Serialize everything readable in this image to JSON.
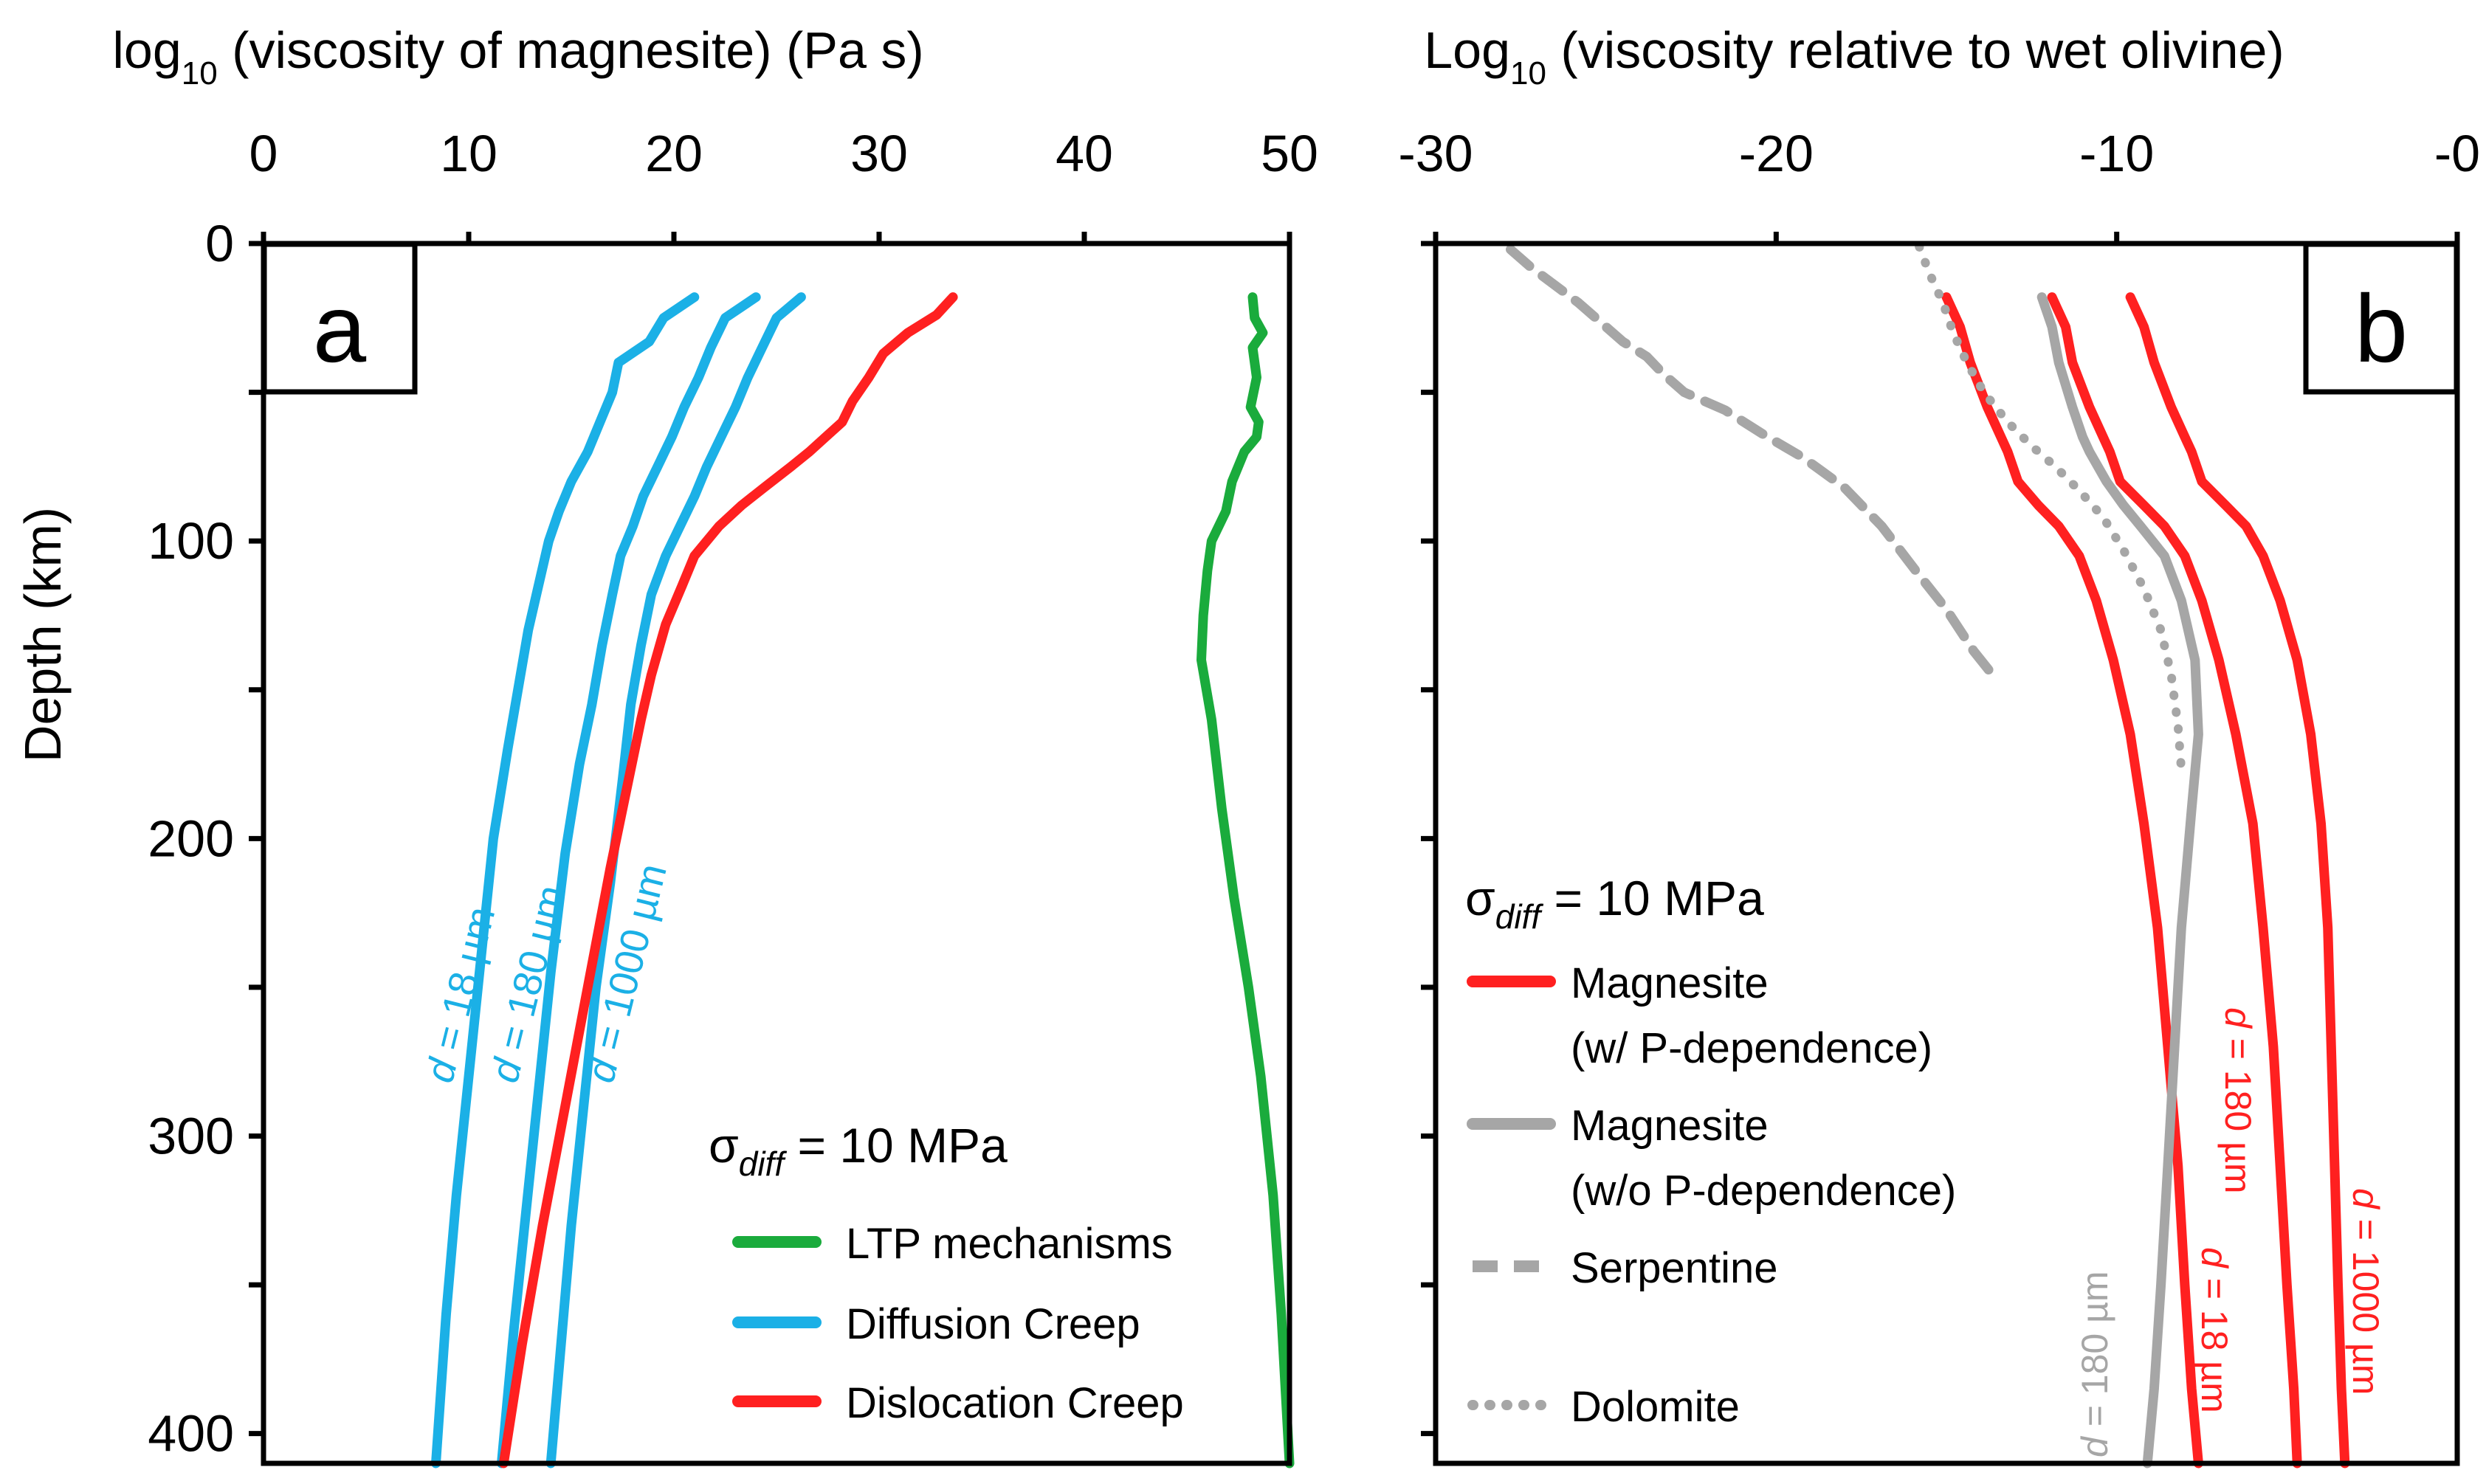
{
  "chart_data": [
    {
      "panel": "a",
      "type": "line",
      "xlabel": {
        "pre": "log",
        "sub": "10",
        "post": " (viscosity of magnesite) (Pa s)"
      },
      "ylabel": "Depth (km)",
      "xlim": [
        0,
        50
      ],
      "ylim": [
        0,
        410
      ],
      "x_ticks": [
        0,
        10,
        20,
        30,
        40,
        50
      ],
      "x_tick_labels": [
        "0",
        "10",
        "20",
        "30",
        "40",
        "50"
      ],
      "y_ticks": [
        0,
        100,
        200,
        300,
        400
      ],
      "y_tick_labels": [
        "0",
        "100",
        "200",
        "300",
        "400"
      ],
      "legend": {
        "title_symbol": "σ",
        "title_sub": "diff",
        "title_rest": " = 10 MPa",
        "entries": [
          {
            "label": "LTP mechanisms",
            "color": "#1aab3c",
            "style": "solid"
          },
          {
            "label": "Diffusion Creep",
            "color": "#1bb0e6",
            "style": "solid"
          },
          {
            "label": "Dislocation Creep",
            "color": "#ff2020",
            "style": "solid"
          }
        ]
      },
      "series": [
        {
          "name": "LTP mechanisms",
          "color": "#1aab3c",
          "style": "solid",
          "x": [
            48.2,
            48.3,
            48.7,
            48.2,
            48.4,
            48.1,
            48.5,
            48.4,
            47.8,
            47.2,
            46.9,
            46.2,
            46.0,
            45.8,
            45.7,
            46.2,
            46.7,
            47.3,
            48.0,
            48.6,
            49.2,
            49.6,
            50.0
          ],
          "y": [
            18,
            25,
            30,
            35,
            45,
            55,
            60,
            65,
            70,
            80,
            90,
            100,
            110,
            125,
            140,
            160,
            190,
            220,
            250,
            280,
            320,
            360,
            410
          ]
        },
        {
          "name": "Diffusion Creep d = 18 µm",
          "color": "#1bb0e6",
          "style": "solid",
          "x": [
            21.0,
            19.5,
            18.8,
            17.3,
            17.0,
            16.4,
            15.8,
            15.0,
            14.4,
            13.9,
            13.4,
            12.9,
            12.4,
            11.9,
            11.2,
            10.6,
            10.0,
            9.4,
            8.9,
            8.4
          ],
          "y": [
            18,
            25,
            33,
            40,
            50,
            60,
            70,
            80,
            90,
            100,
            115,
            130,
            150,
            170,
            200,
            240,
            280,
            320,
            360,
            410
          ]
        },
        {
          "name": "Diffusion Creep d = 180 µm",
          "color": "#1bb0e6",
          "style": "solid",
          "x": [
            24.0,
            22.5,
            21.8,
            21.2,
            20.5,
            19.9,
            19.2,
            18.5,
            18.0,
            17.4,
            17.0,
            16.5,
            16.0,
            15.4,
            14.7,
            14.0,
            13.4,
            12.8,
            12.2,
            11.6
          ],
          "y": [
            18,
            25,
            35,
            45,
            55,
            65,
            75,
            85,
            95,
            105,
            118,
            135,
            155,
            175,
            205,
            245,
            285,
            325,
            365,
            410
          ]
        },
        {
          "name": "Diffusion Creep d = 1000 µm",
          "color": "#1bb0e6",
          "style": "solid",
          "x": [
            26.2,
            25.0,
            24.3,
            23.6,
            23.0,
            22.3,
            21.6,
            21.0,
            20.3,
            19.6,
            18.9,
            18.4,
            17.9,
            17.5,
            16.9,
            16.2,
            15.6,
            15.0,
            14.5,
            14.0
          ],
          "y": [
            18,
            25,
            35,
            45,
            55,
            65,
            75,
            85,
            95,
            105,
            118,
            135,
            155,
            180,
            215,
            250,
            290,
            330,
            370,
            410
          ]
        },
        {
          "name": "Dislocation Creep",
          "color": "#ff2020",
          "style": "solid",
          "x": [
            33.6,
            32.8,
            31.4,
            30.2,
            29.5,
            28.7,
            28.2,
            27.4,
            26.6,
            25.7,
            24.4,
            23.3,
            22.2,
            21.0,
            20.4,
            19.6,
            18.9,
            18.4,
            17.8,
            16.9,
            15.8,
            14.7,
            13.6,
            12.6,
            11.7
          ],
          "y": [
            18,
            24,
            30,
            37,
            45,
            53,
            60,
            65,
            70,
            75,
            82,
            88,
            95,
            105,
            115,
            128,
            145,
            160,
            180,
            210,
            250,
            290,
            330,
            370,
            410
          ]
        }
      ],
      "annotations": [
        {
          "prefix": "d",
          "text": " = 18 µm",
          "color": "#1bb0e6"
        },
        {
          "prefix": "d",
          "text": " = 180 µm",
          "color": "#1bb0e6"
        },
        {
          "prefix": "d",
          "text": " = 1000 µm",
          "color": "#1bb0e6"
        }
      ]
    },
    {
      "panel": "b",
      "type": "line",
      "xlabel": {
        "pre": "Log",
        "sub": "10",
        "post": " (viscosity relative to wet olivine)"
      },
      "ylabel": "",
      "xlim": [
        -30,
        0
      ],
      "ylim": [
        0,
        410
      ],
      "x_ticks": [
        -30,
        -20,
        -10,
        0
      ],
      "x_tick_labels": [
        "-30",
        "-20",
        "-10",
        "-0"
      ],
      "y_ticks": [
        0,
        100,
        200,
        300,
        400
      ],
      "legend": {
        "title_symbol": "σ",
        "title_sub": "diff",
        "title_rest": " = 10 MPa",
        "entries": [
          {
            "label": "Magnesite",
            "label2": "(w/ P-dependence)",
            "color": "#ff2020",
            "style": "solid"
          },
          {
            "label": "Magnesite",
            "label2": "(w/o P-dependence)",
            "color": "#a6a6a6",
            "style": "solid"
          },
          {
            "label": "Serpentine",
            "label2": "",
            "color": "#a6a6a6",
            "style": "dashed"
          },
          {
            "label": "Dolomite",
            "label2": "",
            "color": "#a6a6a6",
            "style": "dotted"
          }
        ]
      },
      "series": [
        {
          "name": "Magnesite w/ P-dependence d = 18 µm",
          "color": "#ff2020",
          "style": "solid",
          "x": [
            -15.0,
            -14.6,
            -14.3,
            -13.8,
            -13.4,
            -13.2,
            -12.9,
            -12.3,
            -11.7,
            -11.1,
            -10.6,
            -10.1,
            -9.6,
            -9.2,
            -8.8,
            -8.5,
            -8.2,
            -8.0,
            -7.8,
            -7.6
          ],
          "y": [
            18,
            28,
            40,
            55,
            65,
            70,
            80,
            88,
            95,
            105,
            120,
            140,
            165,
            195,
            230,
            270,
            310,
            350,
            385,
            410
          ]
        },
        {
          "name": "Magnesite w/ P-dependence d = 180 µm",
          "color": "#ff2020",
          "style": "solid",
          "x": [
            -11.9,
            -11.5,
            -11.3,
            -10.8,
            -10.4,
            -10.2,
            -9.9,
            -9.2,
            -8.6,
            -8.0,
            -7.5,
            -7.0,
            -6.5,
            -6.0,
            -5.7,
            -5.4,
            -5.2,
            -5.0,
            -4.8,
            -4.7
          ],
          "y": [
            18,
            28,
            40,
            55,
            65,
            70,
            80,
            88,
            95,
            105,
            120,
            140,
            165,
            195,
            230,
            270,
            310,
            350,
            385,
            410
          ]
        },
        {
          "name": "Magnesite w/ P-dependence d = 1000 µm",
          "color": "#ff2020",
          "style": "solid",
          "x": [
            -9.6,
            -9.2,
            -8.9,
            -8.4,
            -8.0,
            -7.8,
            -7.5,
            -6.8,
            -6.2,
            -5.7,
            -5.2,
            -4.7,
            -4.3,
            -4.0,
            -3.8,
            -3.7,
            -3.6,
            -3.5,
            -3.4,
            -3.3
          ],
          "y": [
            18,
            28,
            40,
            55,
            65,
            70,
            80,
            88,
            95,
            105,
            120,
            140,
            165,
            195,
            230,
            270,
            310,
            350,
            385,
            410
          ]
        },
        {
          "name": "Magnesite w/o P-dependence d = 180 µm",
          "color": "#a6a6a6",
          "style": "solid",
          "x": [
            -12.2,
            -11.9,
            -11.7,
            -11.3,
            -11.0,
            -10.8,
            -10.3,
            -9.8,
            -9.3,
            -8.6,
            -8.1,
            -7.7,
            -7.6,
            -7.8,
            -8.1,
            -8.3,
            -8.5,
            -8.7,
            -8.9,
            -9.1
          ],
          "y": [
            18,
            28,
            40,
            55,
            65,
            70,
            80,
            88,
            95,
            105,
            120,
            140,
            165,
            190,
            230,
            270,
            310,
            350,
            385,
            410
          ]
        },
        {
          "name": "Serpentine",
          "color": "#a6a6a6",
          "style": "dashed",
          "x": [
            -27.8,
            -27.2,
            -26.5,
            -25.8,
            -25.0,
            -24.5,
            -23.8,
            -23.3,
            -22.7,
            -21.5,
            -20.4,
            -19.2,
            -18.0,
            -16.9,
            -15.9,
            -15.0,
            -14.2,
            -13.5
          ],
          "y": [
            2,
            8,
            14,
            20,
            28,
            33,
            38,
            44,
            50,
            56,
            64,
            72,
            82,
            95,
            110,
            123,
            137,
            147
          ]
        },
        {
          "name": "Dolomite",
          "color": "#a6a6a6",
          "style": "dotted",
          "x": [
            -15.8,
            -15.5,
            -15.1,
            -14.8,
            -14.4,
            -13.9,
            -13.2,
            -12.5,
            -11.8,
            -11.1,
            -10.4,
            -9.8,
            -9.2,
            -8.7,
            -8.4,
            -8.2,
            -8.1
          ],
          "y": [
            1,
            10,
            20,
            30,
            40,
            50,
            60,
            68,
            75,
            83,
            92,
            103,
            116,
            130,
            145,
            162,
            177
          ]
        }
      ],
      "annotations": [
        {
          "prefix": "d",
          "text": " = 180 µm",
          "color": "#a6a6a6"
        },
        {
          "prefix": "d",
          "text": " = 18 µm",
          "color": "#ff2020"
        },
        {
          "prefix": "d",
          "text": " = 180 µm",
          "color": "#ff2020"
        },
        {
          "prefix": "d",
          "text": " = 1000 µm",
          "color": "#ff2020"
        }
      ]
    }
  ]
}
